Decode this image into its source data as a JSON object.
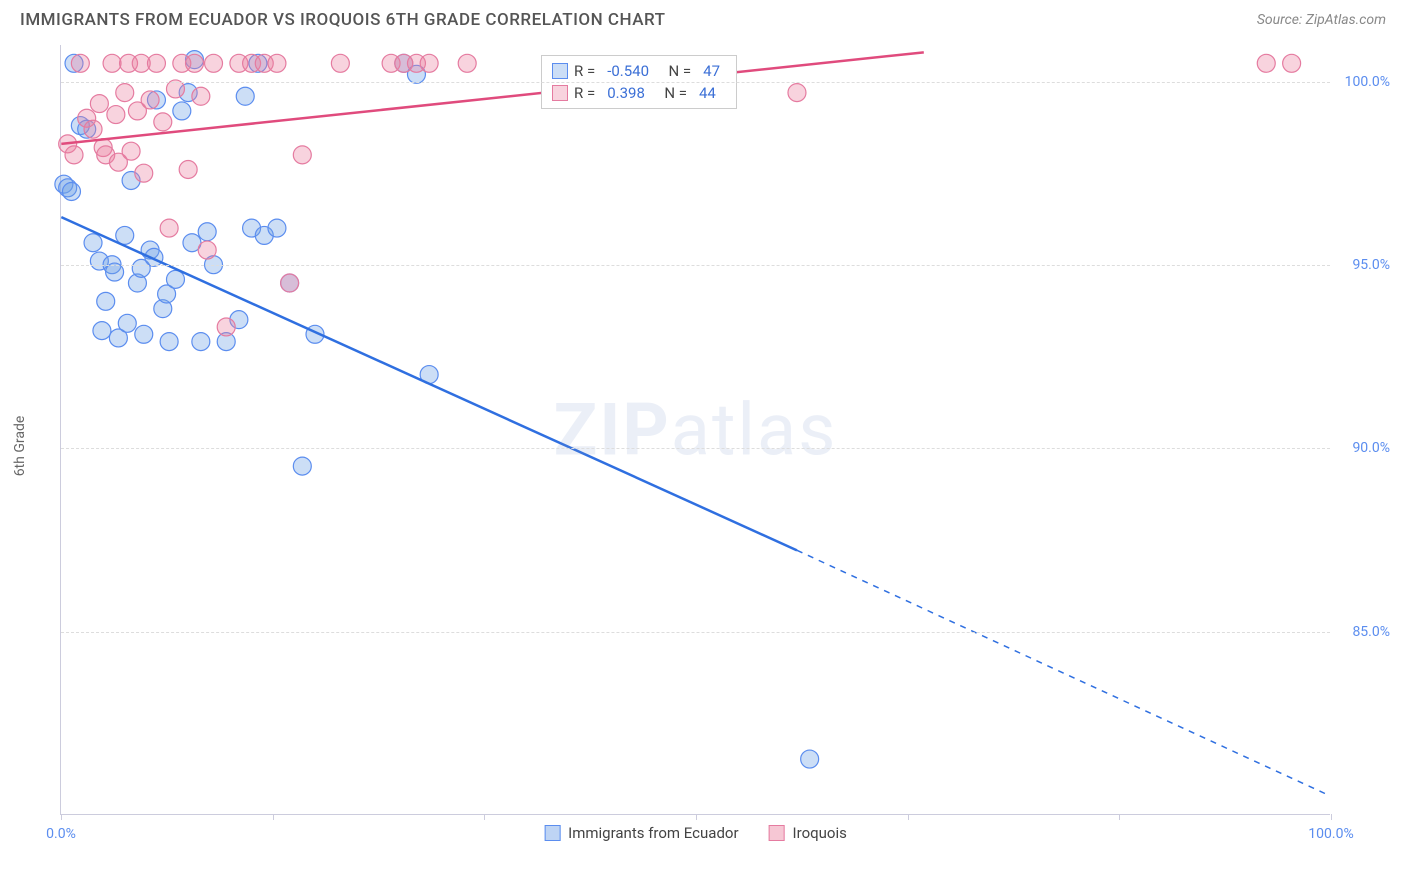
{
  "title": "IMMIGRANTS FROM ECUADOR VS IROQUOIS 6TH GRADE CORRELATION CHART",
  "source": "Source: ZipAtlas.com",
  "ylabel": "6th Grade",
  "watermark": {
    "bold": "ZIP",
    "rest": "atlas"
  },
  "xlim": [
    0,
    100
  ],
  "ylim": [
    80,
    101
  ],
  "xticks_label": {
    "left": "0.0%",
    "right": "100.0%"
  },
  "xtick_positions": [
    0,
    16.67,
    33.33,
    50,
    66.67,
    83.33,
    100
  ],
  "yticks": [
    {
      "v": 100,
      "label": "100.0%"
    },
    {
      "v": 95,
      "label": "95.0%"
    },
    {
      "v": 90,
      "label": "90.0%"
    },
    {
      "v": 85,
      "label": "85.0%"
    }
  ],
  "chart": {
    "type": "scatter",
    "background_color": "#ffffff",
    "grid_color": "#dddddd",
    "series": [
      {
        "name": "Immigrants from Ecuador",
        "color_fill": "rgba(110,160,230,0.35)",
        "color_stroke": "#5b8def",
        "line_color": "#2f6fe0",
        "marker_radius": 9,
        "R": "-0.540",
        "N": "47",
        "regression": {
          "x1": 0,
          "y1": 96.3,
          "x2": 58,
          "y2": 87.2,
          "dash_extend_x": 100,
          "dash_extend_y": 80.5
        },
        "points": [
          [
            0.2,
            97.2
          ],
          [
            0.5,
            97.1
          ],
          [
            0.8,
            97.0
          ],
          [
            1,
            100.5
          ],
          [
            1.5,
            98.8
          ],
          [
            2,
            98.7
          ],
          [
            2.5,
            95.6
          ],
          [
            3,
            95.1
          ],
          [
            3.2,
            93.2
          ],
          [
            3.5,
            94.0
          ],
          [
            4,
            95.0
          ],
          [
            4.2,
            94.8
          ],
          [
            4.5,
            93.0
          ],
          [
            5,
            95.8
          ],
          [
            5.2,
            93.4
          ],
          [
            5.5,
            97.3
          ],
          [
            6,
            94.5
          ],
          [
            6.3,
            94.9
          ],
          [
            6.5,
            93.1
          ],
          [
            7,
            95.4
          ],
          [
            7.3,
            95.2
          ],
          [
            7.5,
            99.5
          ],
          [
            8,
            93.8
          ],
          [
            8.3,
            94.2
          ],
          [
            8.5,
            92.9
          ],
          [
            9,
            94.6
          ],
          [
            9.5,
            99.2
          ],
          [
            10,
            99.7
          ],
          [
            10.3,
            95.6
          ],
          [
            10.5,
            100.6
          ],
          [
            11,
            92.9
          ],
          [
            11.5,
            95.9
          ],
          [
            12,
            95.0
          ],
          [
            13,
            92.9
          ],
          [
            14,
            93.5
          ],
          [
            14.5,
            99.6
          ],
          [
            15,
            96.0
          ],
          [
            15.5,
            100.5
          ],
          [
            16,
            95.8
          ],
          [
            17,
            96.0
          ],
          [
            18,
            94.5
          ],
          [
            19,
            89.5
          ],
          [
            20,
            93.1
          ],
          [
            27,
            100.5
          ],
          [
            28,
            100.2
          ],
          [
            29,
            92.0
          ],
          [
            59,
            81.5
          ]
        ]
      },
      {
        "name": "Iroquois",
        "color_fill": "rgba(235,130,160,0.35)",
        "color_stroke": "#e57ba0",
        "line_color": "#e04b7d",
        "marker_radius": 9,
        "R": "0.398",
        "N": "44",
        "regression": {
          "x1": 0,
          "y1": 98.3,
          "x2": 68,
          "y2": 100.8
        },
        "points": [
          [
            0.5,
            98.3
          ],
          [
            1,
            98.0
          ],
          [
            1.5,
            100.5
          ],
          [
            2,
            99.0
          ],
          [
            2.5,
            98.7
          ],
          [
            3,
            99.4
          ],
          [
            3.3,
            98.2
          ],
          [
            3.5,
            98.0
          ],
          [
            4,
            100.5
          ],
          [
            4.3,
            99.1
          ],
          [
            4.5,
            97.8
          ],
          [
            5,
            99.7
          ],
          [
            5.3,
            100.5
          ],
          [
            5.5,
            98.1
          ],
          [
            6,
            99.2
          ],
          [
            6.3,
            100.5
          ],
          [
            6.5,
            97.5
          ],
          [
            7,
            99.5
          ],
          [
            7.5,
            100.5
          ],
          [
            8,
            98.9
          ],
          [
            8.5,
            96.0
          ],
          [
            9,
            99.8
          ],
          [
            9.5,
            100.5
          ],
          [
            10,
            97.6
          ],
          [
            10.5,
            100.5
          ],
          [
            11,
            99.6
          ],
          [
            11.5,
            95.4
          ],
          [
            12,
            100.5
          ],
          [
            13,
            93.3
          ],
          [
            14,
            100.5
          ],
          [
            15,
            100.5
          ],
          [
            16,
            100.5
          ],
          [
            17,
            100.5
          ],
          [
            18,
            94.5
          ],
          [
            19,
            98.0
          ],
          [
            22,
            100.5
          ],
          [
            26,
            100.5
          ],
          [
            27,
            100.5
          ],
          [
            28,
            100.5
          ],
          [
            29,
            100.5
          ],
          [
            32,
            100.5
          ],
          [
            58,
            99.7
          ],
          [
            95,
            100.5
          ],
          [
            97,
            100.5
          ]
        ]
      }
    ]
  },
  "legend_bottom": [
    {
      "label": "Immigrants from Ecuador",
      "fill": "rgba(110,160,230,0.45)",
      "stroke": "#5b8def"
    },
    {
      "label": "Iroquois",
      "fill": "rgba(235,130,160,0.45)",
      "stroke": "#e57ba0"
    }
  ]
}
